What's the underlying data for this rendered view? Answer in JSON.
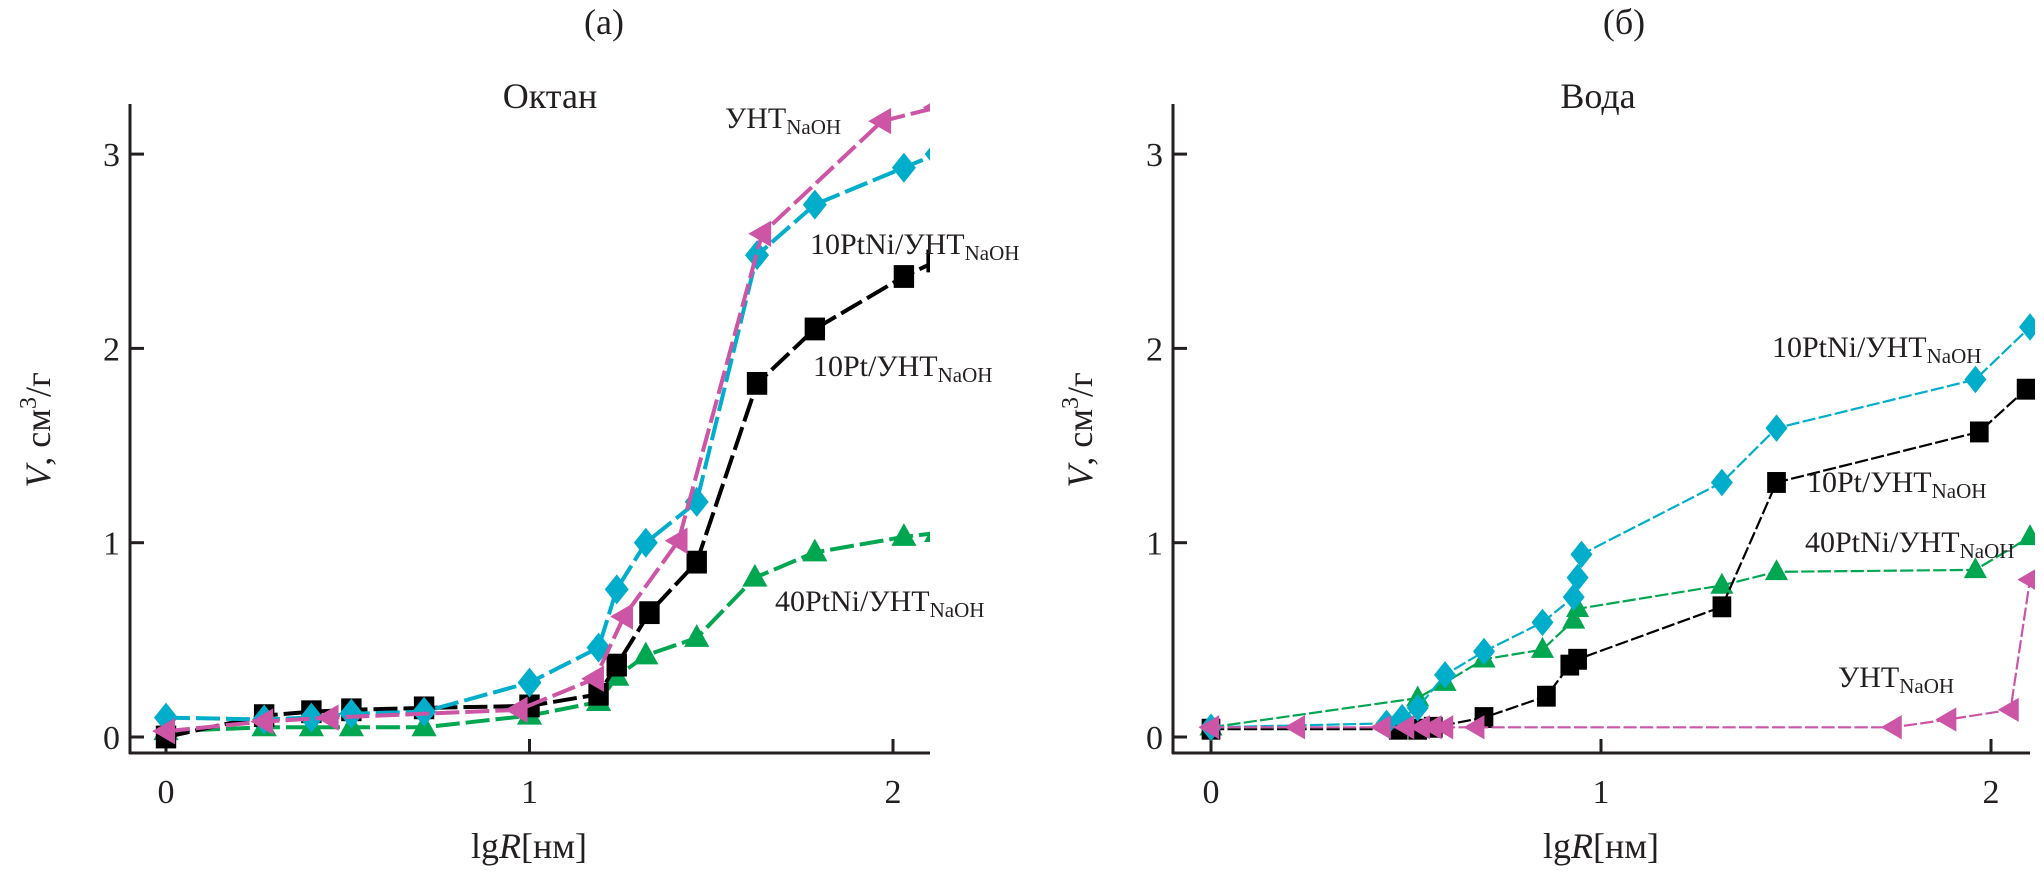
{
  "chart_data": [
    {
      "type": "line",
      "panel": "(a)",
      "title": "Октан",
      "xlabel": "lgR[нм]",
      "ylabel": "V, см3/г",
      "xlim": [
        -0.1,
        2.1
      ],
      "ylim": [
        -0.1,
        3.25
      ],
      "xticks": [
        "0",
        "1",
        "2"
      ],
      "yticks": [
        "0",
        "1",
        "2",
        "3"
      ],
      "grid": false,
      "series": [
        {
          "name": "10PtNi/УНТNaOH",
          "label_main": "10PtNi/УНТ",
          "label_sub": "NaOH",
          "color": "#00aecb",
          "marker": "diamond",
          "x": [
            0,
            0.27,
            0.4,
            0.51,
            0.71,
            1.0,
            1.19,
            1.24,
            1.32,
            1.46,
            1.626,
            1.785,
            2.03,
            2.12
          ],
          "y": [
            0.1,
            0.09,
            0.1,
            0.12,
            0.13,
            0.28,
            0.46,
            0.76,
            1.0,
            1.21,
            2.48,
            2.74,
            2.93,
            3.0
          ]
        },
        {
          "name": "10Pt/УНТNaOH",
          "label_main": "10Pt/УНТ",
          "label_sub": "NaOH",
          "color": "#000000",
          "marker": "square",
          "x": [
            0,
            0.27,
            0.4,
            0.51,
            0.71,
            1.0,
            1.19,
            1.24,
            1.33,
            1.46,
            1.626,
            1.785,
            2.03,
            2.12
          ],
          "y": [
            0.0,
            0.11,
            0.13,
            0.14,
            0.15,
            0.16,
            0.22,
            0.37,
            0.64,
            0.9,
            1.82,
            2.1,
            2.37,
            2.45
          ]
        },
        {
          "name": "УНТNaOH",
          "label_main": "УНТ",
          "label_sub": "NaOH",
          "color": "#cc55a5",
          "marker": "triangle-left",
          "x": [
            0,
            0.27,
            0.45,
            0.97,
            1.18,
            1.26,
            1.41,
            1.64,
            1.97,
            2.12
          ],
          "y": [
            0.03,
            0.08,
            0.1,
            0.14,
            0.3,
            0.62,
            1.01,
            2.59,
            3.17,
            3.24
          ]
        },
        {
          "name": "40PtNi/УНТNaOH",
          "label_main": "40PtNi/УНТ",
          "label_sub": "NaOH",
          "color": "#00a650",
          "marker": "triangle-up",
          "x": [
            0,
            0.27,
            0.4,
            0.51,
            0.71,
            1.0,
            1.19,
            1.24,
            1.32,
            1.46,
            1.62,
            1.785,
            2.03,
            2.12
          ],
          "y": [
            0.03,
            0.05,
            0.05,
            0.05,
            0.05,
            0.11,
            0.18,
            0.31,
            0.42,
            0.51,
            0.82,
            0.95,
            1.03,
            1.05
          ]
        }
      ]
    },
    {
      "type": "line",
      "panel": "(б)",
      "title": "Вода",
      "xlabel": "lgR[нм]",
      "ylabel": "V, см3/г",
      "xlim": [
        -0.1,
        2.1
      ],
      "ylim": [
        -0.1,
        3.25
      ],
      "xticks": [
        "0",
        "1",
        "2"
      ],
      "yticks": [
        "0",
        "1",
        "2",
        "3"
      ],
      "grid": false,
      "series": [
        {
          "name": "10PtNi/УНТNaOH",
          "label_main": "10PtNi/УНТ",
          "label_sub": "NaOH",
          "color": "#00aecb",
          "marker": "diamond",
          "x": [
            0,
            0.45,
            0.49,
            0.53,
            0.6,
            0.7,
            0.85,
            0.93,
            0.94,
            0.95,
            1.31,
            1.45,
            1.96,
            2.1
          ],
          "y": [
            0.05,
            0.07,
            0.1,
            0.15,
            0.32,
            0.44,
            0.59,
            0.72,
            0.82,
            0.94,
            1.31,
            1.59,
            1.84,
            2.11
          ]
        },
        {
          "name": "10Pt/УНТNaOH",
          "label_main": "10Pt/УНТ",
          "label_sub": "NaOH",
          "color": "#000000",
          "marker": "square",
          "x": [
            0,
            0.48,
            0.53,
            0.57,
            0.7,
            0.86,
            0.92,
            0.94,
            1.31,
            1.45,
            1.97,
            2.09
          ],
          "y": [
            0.04,
            0.04,
            0.04,
            0.05,
            0.1,
            0.21,
            0.37,
            0.4,
            0.67,
            1.31,
            1.57,
            1.79
          ]
        },
        {
          "name": "40PtNi/УНТNaOH",
          "label_main": "40PtNi/УНТ",
          "label_sub": "NaOH",
          "color": "#00a650",
          "marker": "triangle-up",
          "x": [
            0,
            0.53,
            0.6,
            0.7,
            0.85,
            0.93,
            0.94,
            1.31,
            1.45,
            1.96,
            2.1
          ],
          "y": [
            0.05,
            0.2,
            0.28,
            0.4,
            0.45,
            0.6,
            0.66,
            0.78,
            0.85,
            0.86,
            1.03
          ]
        },
        {
          "name": "УНТNaOH",
          "label_main": "УНТ",
          "label_sub": "NaOH",
          "color": "#cc55a5",
          "marker": "triangle-left",
          "x": [
            0,
            0.22,
            0.44,
            0.5,
            0.54,
            0.57,
            0.6,
            0.68,
            1.75,
            1.89,
            2.05,
            2.1
          ],
          "y": [
            0.05,
            0.05,
            0.05,
            0.05,
            0.05,
            0.05,
            0.05,
            0.05,
            0.05,
            0.09,
            0.14,
            0.81
          ]
        }
      ]
    }
  ]
}
